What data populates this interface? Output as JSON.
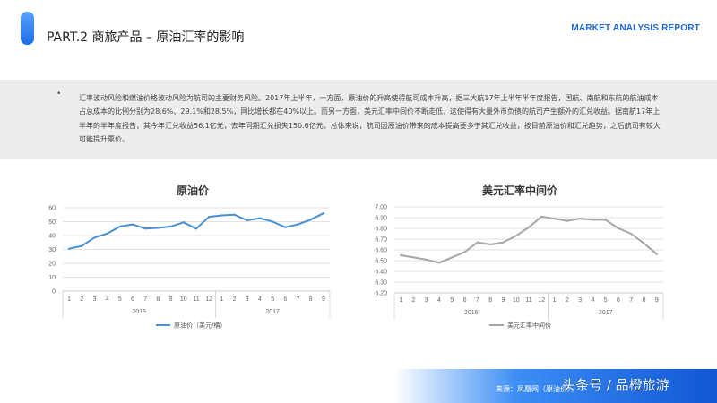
{
  "header": {
    "title": "PART.2 商旅产品 – 原油汇率的影响",
    "report_label": "MARKET ANALYSIS REPORT"
  },
  "body": {
    "bullet": "•",
    "paragraph": "汇率波动风险和燃油价格波动风险为航司的主要财务风险。2017年上半年，一方面，原油价的升高使得航司成本升高，据三大航17年上半年半年度报告，国航、南航和东航的航油成本占总成本的比例分别为28.6%、29.1%和28.5%，同比增长都在40%以上。而另一方面，美元汇率中间价不断走低，这使得有大量外币负债的航司产生额外的汇兑收益。据南航17年上半年的半年度报告，其今年汇兑收益56.1亿元，去年同期汇兑损失150.6亿元。总体来说，航司因原油价带来的成本提高要多于其汇兑收益，按目前原油价和汇兑趋势，之后航司有较大可能提升票价。"
  },
  "footer": {
    "source": "来源：凤凰网（原油价），",
    "watermark": "头条号 / 品橙旅游"
  },
  "colors": {
    "accent": "#1f69d9",
    "oil_line": "#4a8fd4",
    "fx_line": "#a6a6a6"
  },
  "chart_data": [
    {
      "type": "line",
      "title": "原油价",
      "categories": [
        "1",
        "2",
        "3",
        "4",
        "5",
        "6",
        "7",
        "8",
        "9",
        "10",
        "11",
        "12",
        "1",
        "2",
        "3",
        "4",
        "5",
        "6",
        "7",
        "8",
        "9"
      ],
      "groups": [
        {
          "label": "2016",
          "count": 12
        },
        {
          "label": "2017",
          "count": 9
        }
      ],
      "series": [
        {
          "name": "原油价（美元/桶）",
          "values": [
            30.5,
            32.5,
            38.5,
            41.5,
            46.5,
            48,
            45,
            45.5,
            46.5,
            49.5,
            45,
            53.5,
            54.5,
            55,
            51,
            52.5,
            50,
            46,
            48,
            51.5,
            56
          ]
        }
      ],
      "ylim": [
        0,
        60
      ],
      "yticks": [
        "0",
        "10",
        "20",
        "30",
        "40",
        "50",
        "60"
      ],
      "grid": true,
      "legend": "bottom"
    },
    {
      "type": "line",
      "title": "美元汇率中间价",
      "categories": [
        "1",
        "2",
        "3",
        "4",
        "5",
        "6",
        "7",
        "8",
        "9",
        "10",
        "11",
        "12",
        "1",
        "2",
        "3",
        "4",
        "5",
        "6",
        "7",
        "8",
        "9"
      ],
      "groups": [
        {
          "label": "2016",
          "count": 12
        },
        {
          "label": "2017",
          "count": 9
        }
      ],
      "series": [
        {
          "name": "美元汇率中间价",
          "values": [
            6.55,
            6.53,
            6.51,
            6.48,
            6.53,
            6.58,
            6.67,
            6.65,
            6.67,
            6.73,
            6.81,
            6.91,
            6.89,
            6.87,
            6.89,
            6.88,
            6.88,
            6.8,
            6.75,
            6.66,
            6.56
          ]
        }
      ],
      "ylim": [
        6.2,
        7.0
      ],
      "yticks": [
        "6.20",
        "6.30",
        "6.40",
        "6.50",
        "6.60",
        "6.70",
        "6.80",
        "6.90",
        "7.00"
      ],
      "grid": true,
      "legend": "bottom"
    }
  ]
}
